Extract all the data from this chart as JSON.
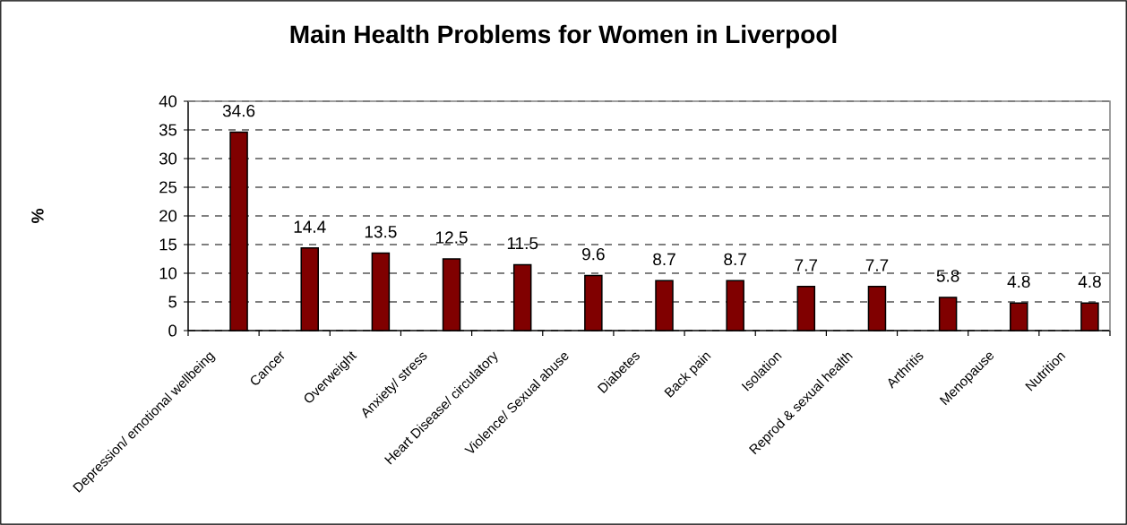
{
  "chart_data": {
    "type": "bar",
    "title": "Main Health Problems for Women in Liverpool",
    "ylabel": "%",
    "categories": [
      "Depression/ emotional wellbeing",
      "Cancer",
      "Overweight",
      "Anxiety/ stress",
      "Heart Disease/ circulatory",
      "Violence/ Sexual abuse",
      "Diabetes",
      "Back pain",
      "Isolation",
      "Reprod & sexual health",
      "Arthritis",
      "Menopause",
      "Nutrition"
    ],
    "values": [
      34.6,
      14.4,
      13.5,
      12.5,
      11.5,
      9.6,
      8.7,
      8.7,
      7.7,
      7.7,
      5.8,
      4.8,
      4.8
    ],
    "color": "#800000",
    "ylim": [
      0,
      40
    ],
    "yticks": [
      0,
      5,
      10,
      15,
      20,
      25,
      30,
      35,
      40
    ],
    "grid": "y",
    "data_labels": true
  }
}
